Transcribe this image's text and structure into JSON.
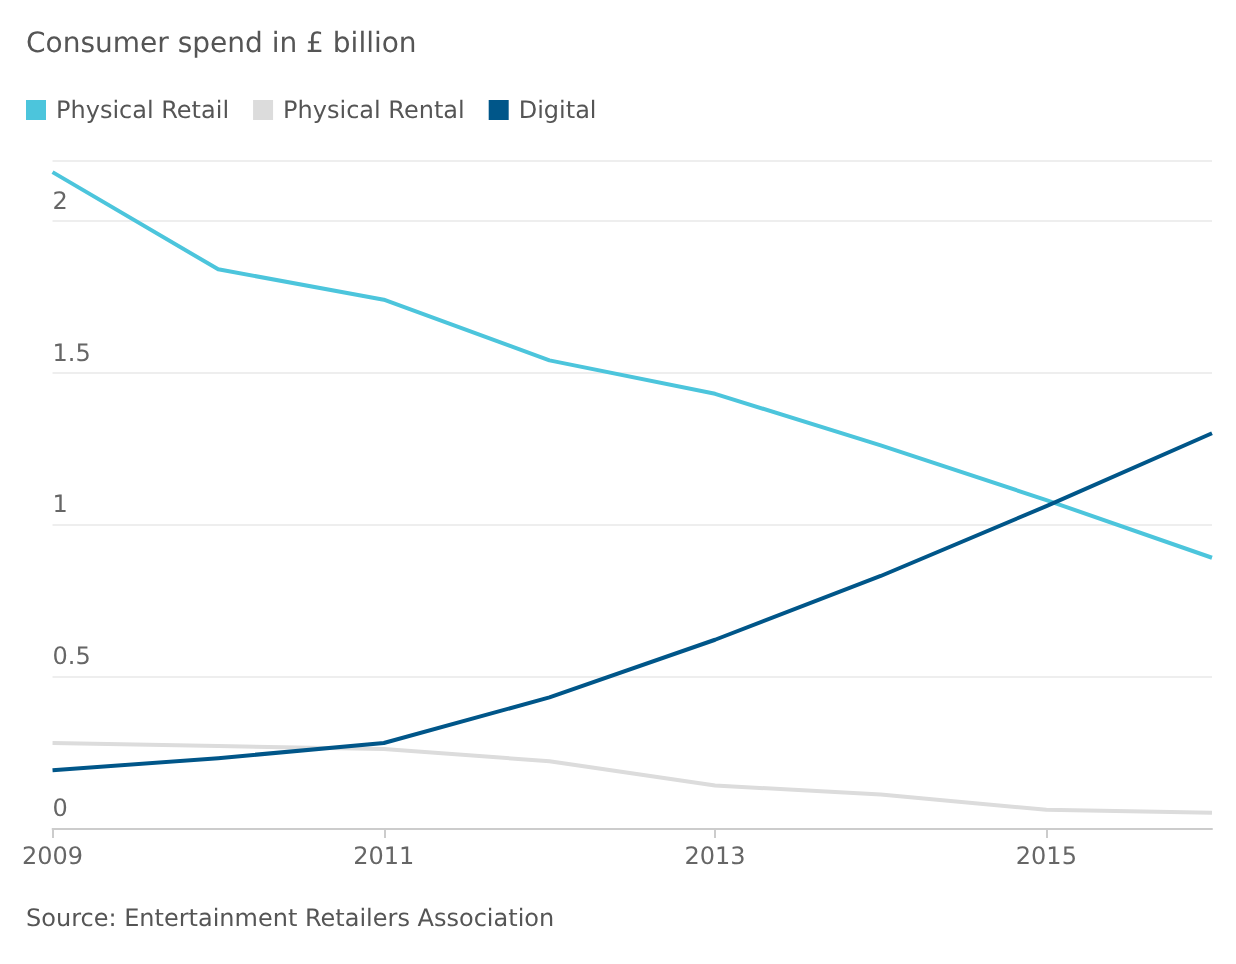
{
  "chart_data": {
    "type": "line",
    "title": "Consumer spend in £ billion",
    "x": [
      2009,
      2010,
      2011,
      2012,
      2013,
      2014,
      2015,
      2016
    ],
    "series": [
      {
        "name": "Physical Retail",
        "color": "#4cc5dc",
        "values": [
          2.16,
          1.84,
          1.74,
          1.54,
          1.43,
          1.26,
          1.08,
          0.89
        ]
      },
      {
        "name": "Physical Rental",
        "color": "#dcdcdc",
        "values": [
          0.28,
          0.27,
          0.26,
          0.22,
          0.14,
          0.11,
          0.06,
          0.05
        ]
      },
      {
        "name": "Digital",
        "color": "#005689",
        "values": [
          0.19,
          0.23,
          0.28,
          0.43,
          0.62,
          0.83,
          1.06,
          1.3
        ]
      }
    ],
    "xlim": [
      2009,
      2016
    ],
    "xticks": [
      2009,
      2011,
      2013,
      2015
    ],
    "ylim": [
      0,
      2.2
    ],
    "yticks": [
      0,
      0.5,
      1,
      1.5,
      2,
      {
        "value": 2.2,
        "label": null
      }
    ],
    "grid": "y",
    "legend": "top left",
    "marker": "none",
    "line_style": "solid",
    "annotations": [
      "Source: Entertainment Retailers Association"
    ]
  }
}
